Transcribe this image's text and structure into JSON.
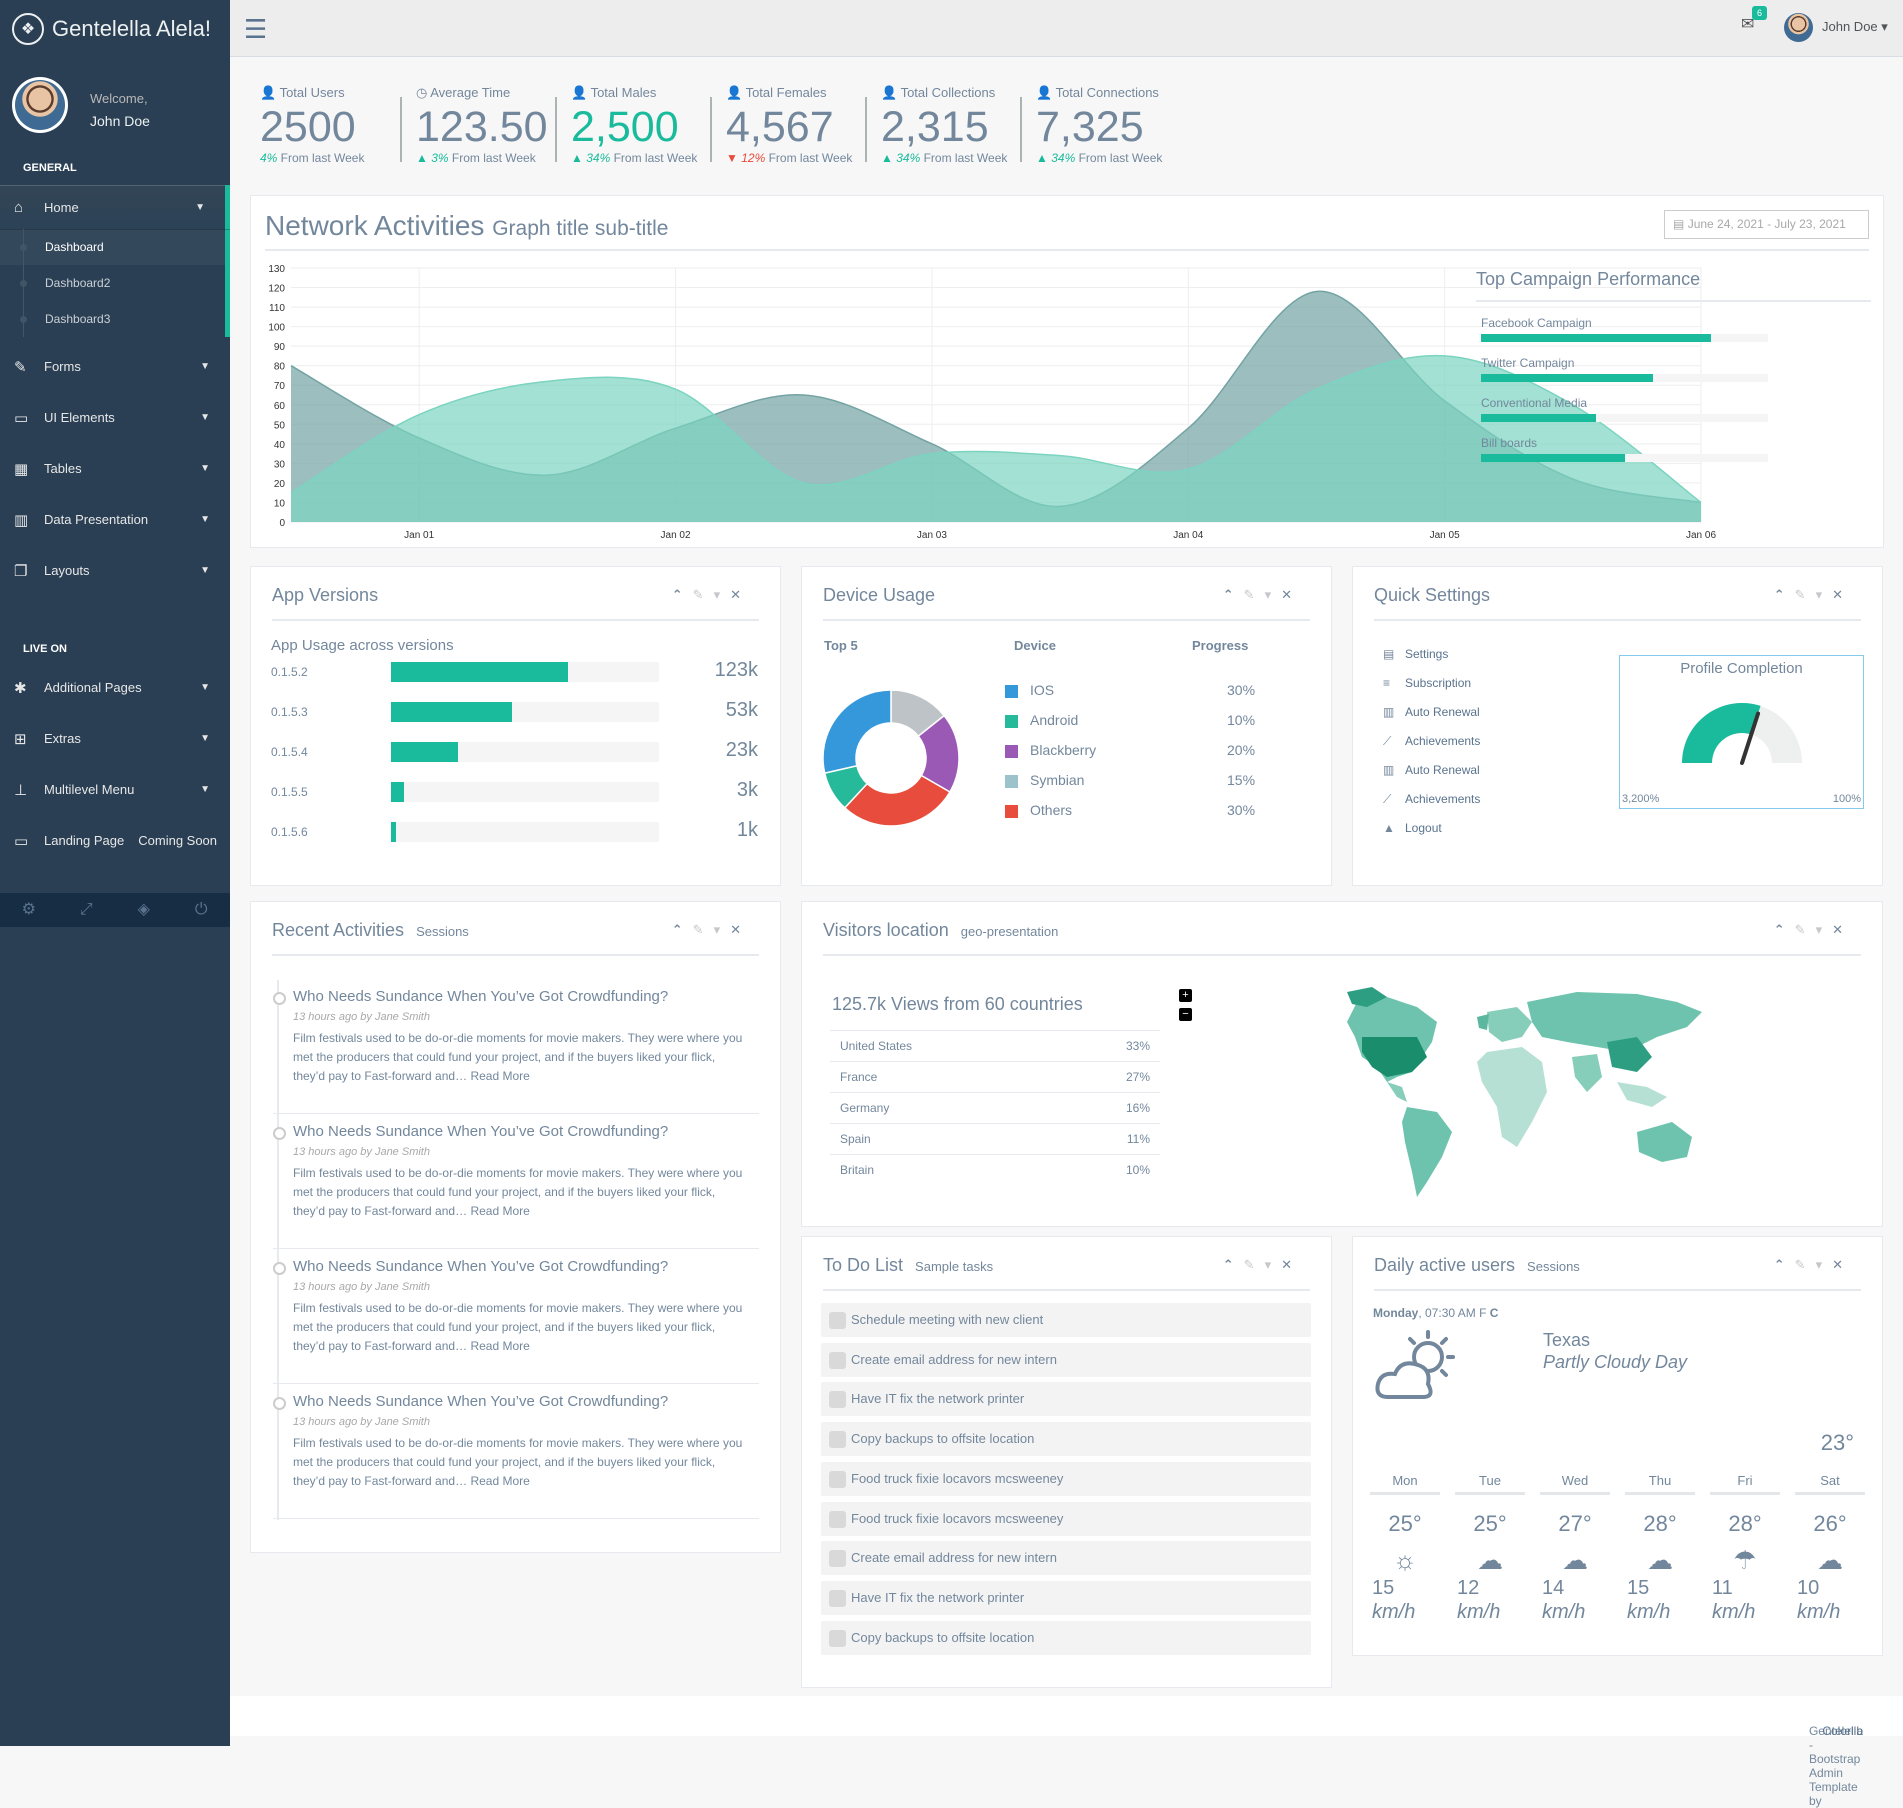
{
  "brand": {
    "title": "Gentelella Alela!"
  },
  "profile": {
    "welcome": "Welcome,",
    "name": "John Doe"
  },
  "sidebar": {
    "section_general": "GENERAL",
    "home": "Home",
    "sub": [
      "Dashboard",
      "Dashboard2",
      "Dashboard3"
    ],
    "items": [
      "Forms",
      "UI Elements",
      "Tables",
      "Data Presentation",
      "Layouts"
    ],
    "section_live": "LIVE ON",
    "live_items": [
      "Additional Pages",
      "Extras",
      "Multilevel Menu"
    ],
    "landing": "Landing Page",
    "coming": "Coming Soon"
  },
  "topnav": {
    "badge": "6",
    "user": "John Doe"
  },
  "tiles": [
    {
      "label": "Total Users",
      "count": "2500",
      "pct": "4%",
      "rest": " From last Week",
      "trend": "green",
      "arrow": "",
      "color": ""
    },
    {
      "label": "Average Time",
      "count": "123.50",
      "pct": "3%",
      "rest": " From last Week",
      "trend": "green",
      "arrow": "up",
      "color": ""
    },
    {
      "label": "Total Males",
      "count": "2,500",
      "pct": "34%",
      "rest": " From last Week",
      "trend": "green",
      "arrow": "up",
      "color": "green"
    },
    {
      "label": "Total Females",
      "count": "4,567",
      "pct": "12%",
      "rest": " From last Week",
      "trend": "red",
      "arrow": "down",
      "color": ""
    },
    {
      "label": "Total Collections",
      "count": "2,315",
      "pct": "34%",
      "rest": " From last Week",
      "trend": "green",
      "arrow": "up",
      "color": ""
    },
    {
      "label": "Total Connections",
      "count": "7,325",
      "pct": "34%",
      "rest": " From last Week",
      "trend": "green",
      "arrow": "up",
      "color": ""
    }
  ],
  "network": {
    "title": "Network Activities",
    "subtitle": "Graph title sub-title",
    "daterange": "June 24, 2021 - July 23, 2021",
    "campaign_title": "Top Campaign Performance",
    "campaigns": [
      {
        "name": "Facebook Campaign",
        "value": 80
      },
      {
        "name": "Twitter Campaign",
        "value": 60
      },
      {
        "name": "Conventional Media",
        "value": 40
      },
      {
        "name": "Bill boards",
        "value": 50
      }
    ]
  },
  "chart_data": {
    "type": "area",
    "categories": [
      "Jan 01",
      "Jan 02",
      "Jan 03",
      "Jan 04",
      "Jan 05",
      "Jan 06"
    ],
    "ylim": [
      0,
      130
    ],
    "yticks": [
      "0",
      "10",
      "20",
      "30",
      "40",
      "50",
      "60",
      "70",
      "80",
      "90",
      "100",
      "110",
      "120",
      "130"
    ],
    "series": [
      {
        "x": [
          0.5,
          1.0,
          1.5,
          2.0,
          2.5,
          3.0,
          3.5,
          4.0,
          4.5,
          5.0,
          5.5,
          6.0
        ],
        "values": [
          80,
          43,
          24,
          48,
          65,
          40,
          8,
          48,
          118,
          62,
          22,
          10
        ],
        "color": "#73A3A3"
      },
      {
        "x": [
          0.5,
          1.0,
          1.5,
          2.0,
          2.5,
          3.0,
          3.5,
          4.0,
          4.5,
          5.0,
          5.5,
          6.0
        ],
        "values": [
          15,
          55,
          72,
          68,
          20,
          35,
          34,
          27,
          68,
          85,
          60,
          10
        ],
        "color": "#7BD4C0"
      }
    ]
  },
  "app_versions": {
    "title": "App Versions",
    "subtitle": "App Usage across versions",
    "rows": [
      {
        "v": "0.1.5.2",
        "pct": 66,
        "count": "123k"
      },
      {
        "v": "0.1.5.3",
        "pct": 45,
        "count": "53k"
      },
      {
        "v": "0.1.5.4",
        "pct": 25,
        "count": "23k"
      },
      {
        "v": "0.1.5.5",
        "pct": 5,
        "count": "3k"
      },
      {
        "v": "0.1.5.6",
        "pct": 2,
        "count": "1k"
      }
    ]
  },
  "device": {
    "title": "Device Usage",
    "h1": "Top 5",
    "h2": "Device",
    "h3": "Progress",
    "rows": [
      {
        "name": "IOS",
        "pct": "30%",
        "color": "#3498DB"
      },
      {
        "name": "Android",
        "pct": "10%",
        "color": "#26B99A"
      },
      {
        "name": "Blackberry",
        "pct": "20%",
        "color": "#9B59B6"
      },
      {
        "name": "Symbian",
        "pct": "15%",
        "color": "#9CC2CB"
      },
      {
        "name": "Others",
        "pct": "30%",
        "color": "#E74C3C"
      }
    ]
  },
  "quick": {
    "title": "Quick Settings",
    "items": [
      "Settings",
      "Subscription",
      "Auto Renewal",
      "Achievements",
      "Auto Renewal",
      "Achievements",
      "Logout"
    ],
    "profile_title": "Profile Completion",
    "min": "3,200%",
    "max": "100%",
    "level": 0.6
  },
  "recent": {
    "title": "Recent Activities",
    "subtitle": "Sessions",
    "items": [
      {
        "h": "Who Needs Sundance When You’ve Got Crowdfunding?",
        "by": "13 hours ago by Jane Smith",
        "p": "Film festivals used to be do-or-die moments for movie makers. They were where you met the producers that could fund your project, and if the buyers liked your flick, they’d pay to Fast-forward and…",
        "more": "Read More"
      },
      {
        "h": "Who Needs Sundance When You’ve Got Crowdfunding?",
        "by": "13 hours ago by Jane Smith",
        "p": "Film festivals used to be do-or-die moments for movie makers. They were where you met the producers that could fund your project, and if the buyers liked your flick, they’d pay to Fast-forward and…",
        "more": "Read More"
      },
      {
        "h": "Who Needs Sundance When You’ve Got Crowdfunding?",
        "by": "13 hours ago by Jane Smith",
        "p": "Film festivals used to be do-or-die moments for movie makers. They were where you met the producers that could fund your project, and if the buyers liked your flick, they’d pay to Fast-forward and…",
        "more": "Read More"
      },
      {
        "h": "Who Needs Sundance When You’ve Got Crowdfunding?",
        "by": "13 hours ago by Jane Smith",
        "p": "Film festivals used to be do-or-die moments for movie makers. They were where you met the producers that could fund your project, and if the buyers liked your flick, they’d pay to Fast-forward and…",
        "more": "Read More"
      }
    ]
  },
  "visitors": {
    "title": "Visitors location",
    "subtitle": "geo-presentation",
    "views": "125.7k Views from 60 countries",
    "rows": [
      {
        "c": "United States",
        "p": "33%"
      },
      {
        "c": "France",
        "p": "27%"
      },
      {
        "c": "Germany",
        "p": "16%"
      },
      {
        "c": "Spain",
        "p": "11%"
      },
      {
        "c": "Britain",
        "p": "10%"
      }
    ]
  },
  "todo": {
    "title": "To Do List",
    "subtitle": "Sample tasks",
    "items": [
      "Schedule meeting with new client",
      "Create email address for new intern",
      "Have IT fix the network printer",
      "Copy backups to offsite location",
      "Food truck fixie locavors mcsweeney",
      "Food truck fixie locavors mcsweeney",
      "Create email address for new intern",
      "Have IT fix the network printer",
      "Copy backups to offsite location"
    ]
  },
  "daily": {
    "title": "Daily active users",
    "subtitle": "Sessions",
    "day": "Monday",
    "time": ", 07:30 AM",
    "unit_f": "F",
    "unit_c": "C",
    "city": "Texas",
    "desc": "Partly Cloudy Day",
    "temp": "23°",
    "week": [
      {
        "d": "Mon",
        "t": "25°",
        "s": "15",
        "u": "km/h",
        "icon": "sun-icon"
      },
      {
        "d": "Tue",
        "t": "25°",
        "s": "12",
        "u": "km/h",
        "icon": "cloud-icon"
      },
      {
        "d": "Wed",
        "t": "27°",
        "s": "14",
        "u": "km/h",
        "icon": "cloud-icon"
      },
      {
        "d": "Thu",
        "t": "28°",
        "s": "15",
        "u": "km/h",
        "icon": "cloud-icon"
      },
      {
        "d": "Fri",
        "t": "28°",
        "s": "11",
        "u": "km/h",
        "icon": "rain-icon"
      },
      {
        "d": "Sat",
        "t": "26°",
        "s": "10",
        "u": "km/h",
        "icon": "cloud-icon"
      }
    ]
  },
  "footer": {
    "text": "Gentelella - Bootstrap Admin Template by ",
    "link": "Colorlib"
  }
}
